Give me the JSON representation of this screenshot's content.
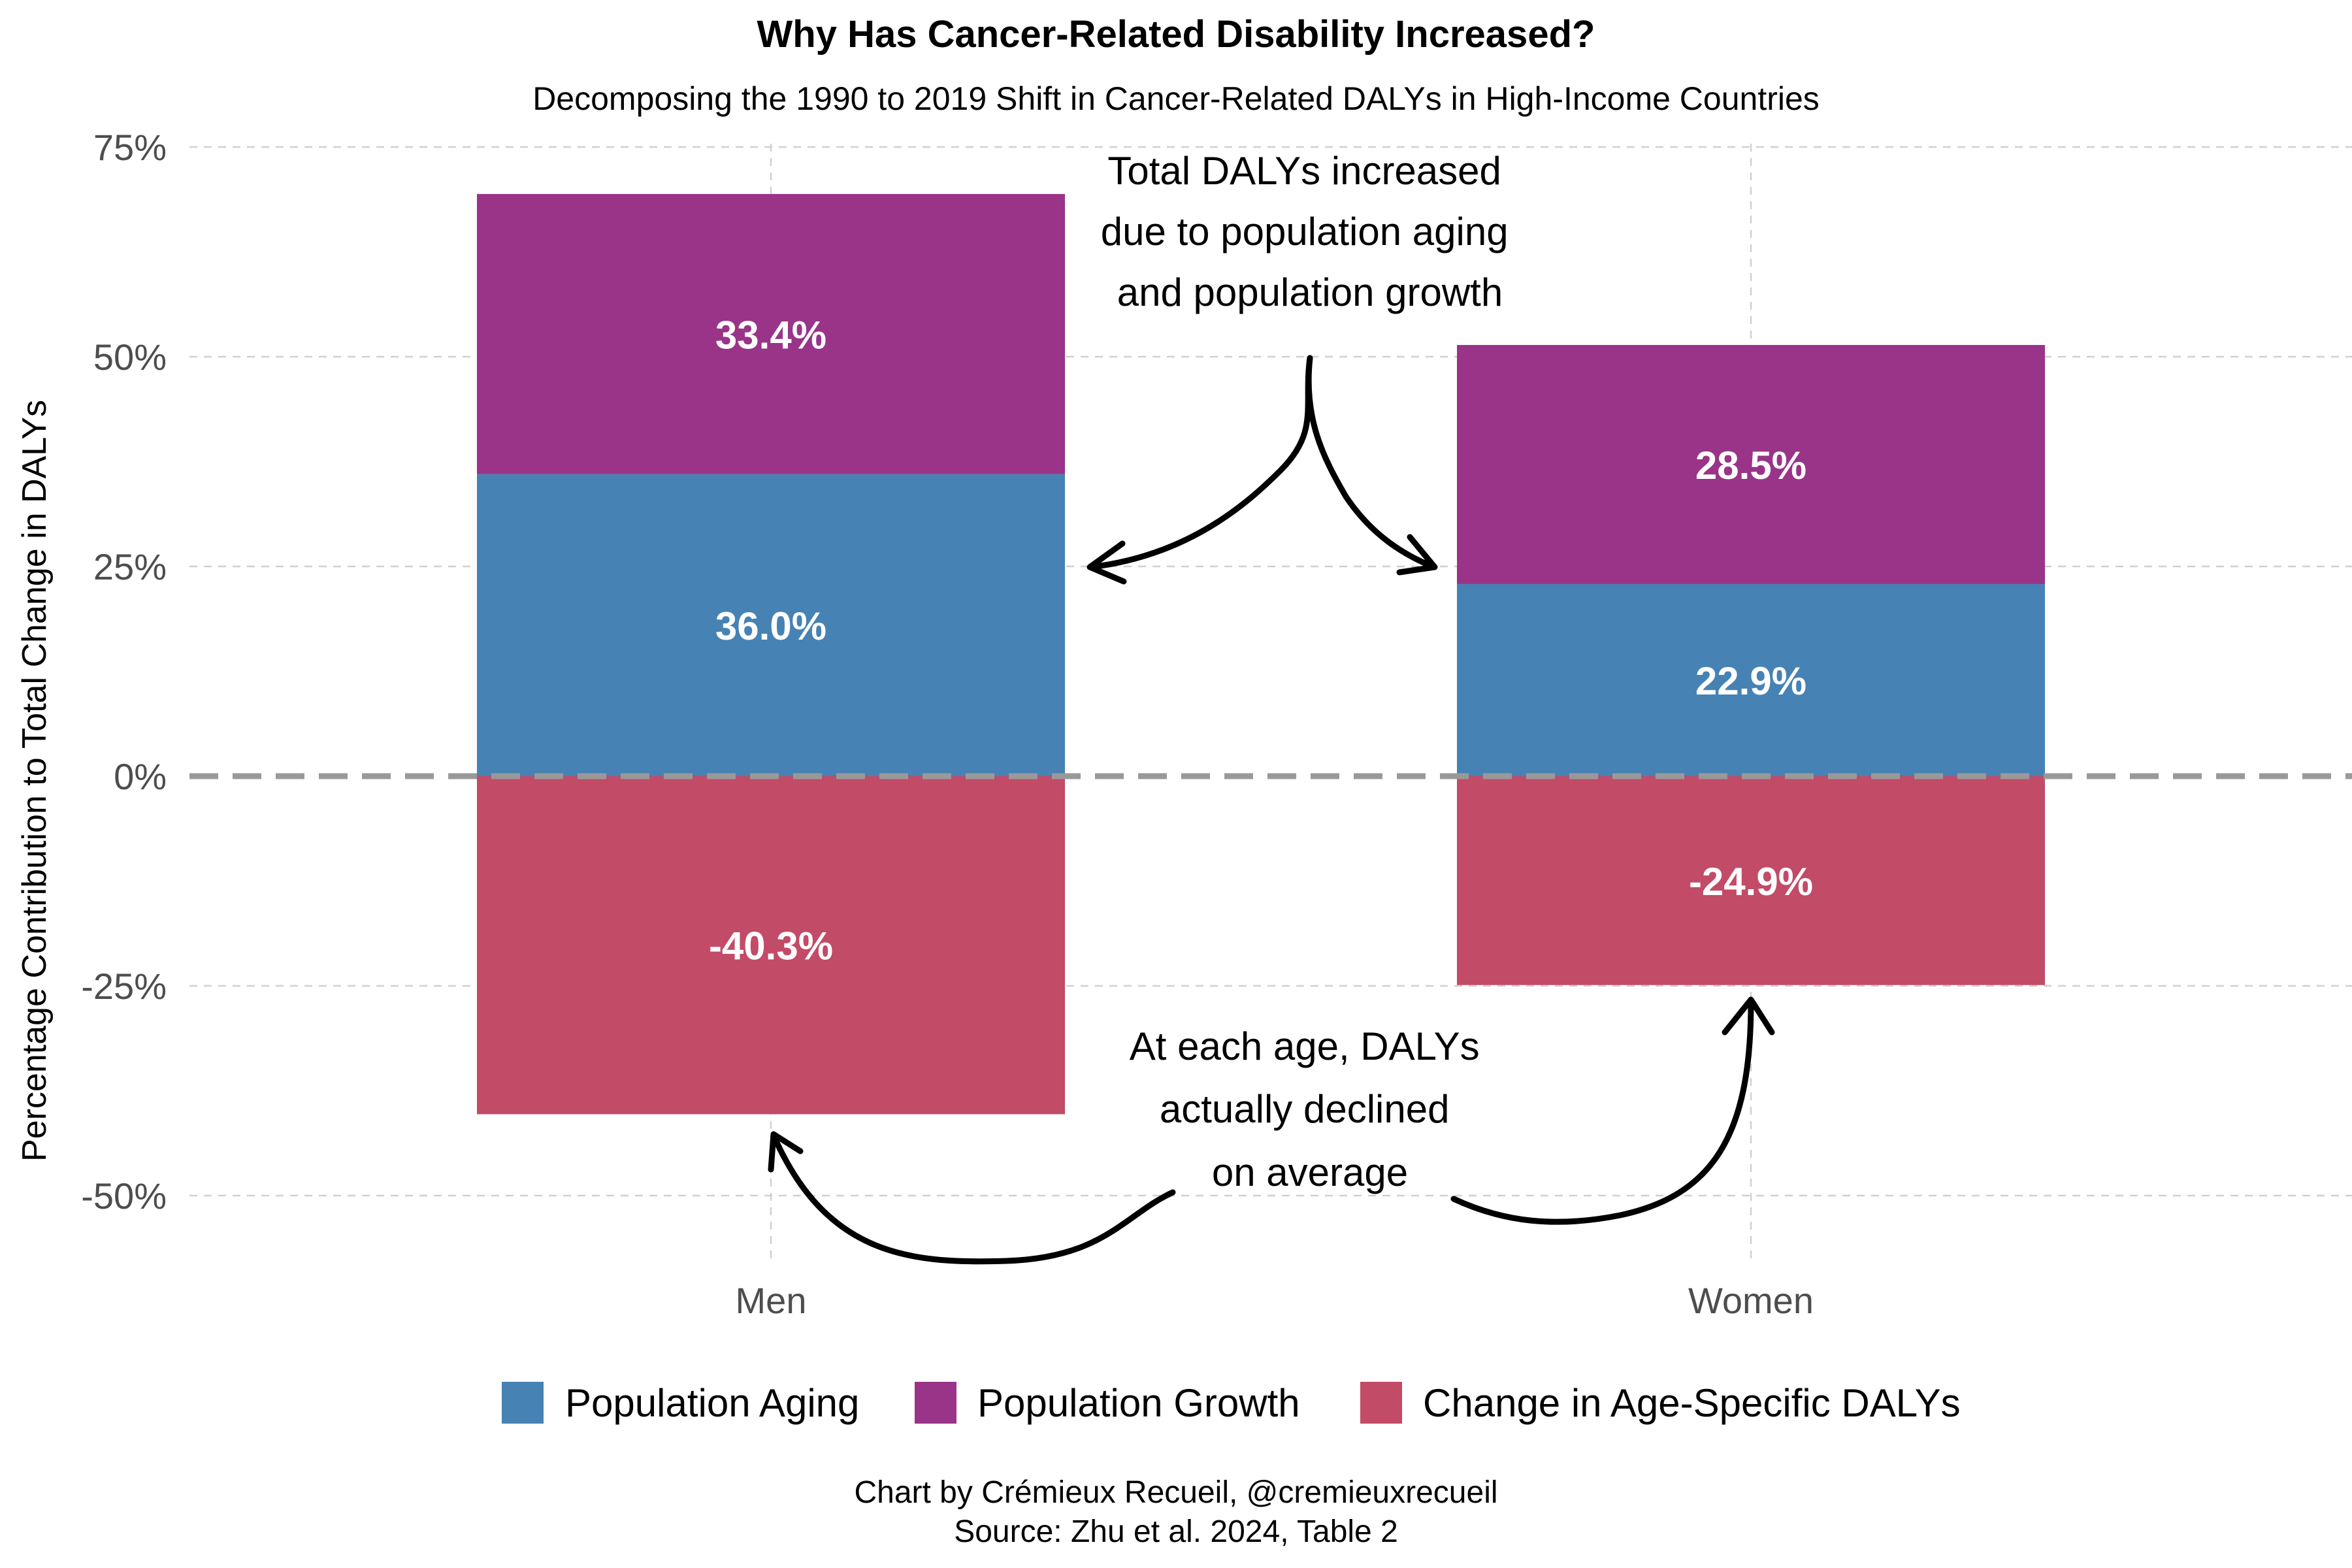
{
  "chart_data": {
    "type": "bar",
    "stacked": true,
    "title": "Why Has Cancer-Related Disability Increased?",
    "subtitle": "Decomposing the 1990 to 2019 Shift in Cancer-Related DALYs in High-Income Countries",
    "xlabel": "",
    "ylabel": "Percentage Contribution to Total Change in DALYs",
    "ylim": [
      -57,
      76
    ],
    "yticks": [
      {
        "value": 75,
        "label": "75%"
      },
      {
        "value": 50,
        "label": "50%"
      },
      {
        "value": 25,
        "label": "25%"
      },
      {
        "value": 0,
        "label": "0%"
      },
      {
        "value": -25,
        "label": "-25%"
      },
      {
        "value": -50,
        "label": "-50%"
      }
    ],
    "categories": [
      "Men",
      "Women"
    ],
    "series": [
      {
        "name": "Population Aging",
        "color": "#4682B4",
        "values": [
          36.0,
          22.9
        ],
        "labels": [
          "36.0%",
          "22.9%"
        ]
      },
      {
        "name": "Population Growth",
        "color": "#993489",
        "values": [
          33.4,
          28.5
        ],
        "labels": [
          "33.4%",
          "28.5%"
        ]
      },
      {
        "name": "Change in Age-Specific DALYs",
        "color": "#C24B67",
        "values": [
          -40.3,
          -24.9
        ],
        "labels": [
          "-40.3%",
          "-24.9%"
        ]
      }
    ],
    "annotations": [
      {
        "lines": [
          "Total DALYs increased",
          "due to population aging",
          "and population growth"
        ]
      },
      {
        "lines": [
          "At each age, DALYs",
          "actually declined",
          "on average"
        ]
      }
    ],
    "legend_position": "bottom",
    "grid": true
  },
  "caption": {
    "line1": "Chart by Crémieux Recueil, @cremieuxrecueil",
    "line2": "Source: Zhu et al. 2024, Table 2"
  }
}
